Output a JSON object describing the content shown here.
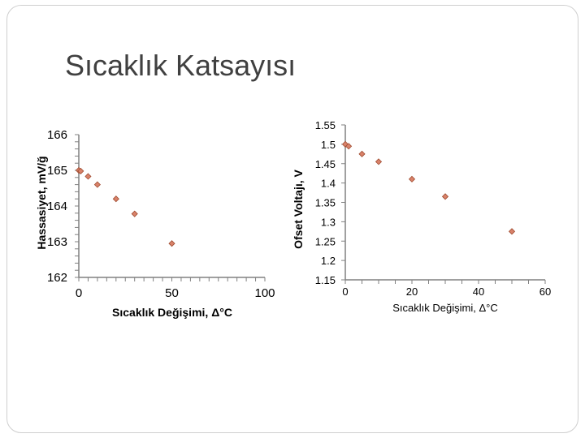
{
  "slide": {
    "title": "Sıcaklık Katsayısı"
  },
  "colors": {
    "marker_fill": "#d9826a",
    "marker_stroke": "#9e4a2e",
    "axis": "#808080",
    "text": "#000000",
    "title": "#404040"
  },
  "chart_data": [
    {
      "type": "scatter",
      "title": "",
      "xlabel": "Sıcaklık Değişimi, Δ°C",
      "ylabel": "Hassasiyet, mV/ğ",
      "xlim": [
        0,
        100
      ],
      "ylim": [
        162,
        166
      ],
      "x_ticks": [
        "0",
        "50",
        "100"
      ],
      "y_ticks": [
        "162",
        "163",
        "164",
        "165",
        "166"
      ],
      "grid": false,
      "legend": "none",
      "marker": "diamond",
      "series": [
        {
          "points": [
            {
              "x": 0,
              "y": 165.0
            },
            {
              "x": 1,
              "y": 164.98
            },
            {
              "x": 5,
              "y": 164.83
            },
            {
              "x": 10,
              "y": 164.6
            },
            {
              "x": 20,
              "y": 164.2
            },
            {
              "x": 30,
              "y": 163.78
            },
            {
              "x": 50,
              "y": 162.95
            }
          ]
        }
      ]
    },
    {
      "type": "scatter",
      "title": "",
      "xlabel": "Sıcaklık Değişimi, Δ°C",
      "ylabel": "Ofset Voltajı, V",
      "xlim": [
        0,
        60
      ],
      "ylim": [
        1.15,
        1.55
      ],
      "x_ticks": [
        "0",
        "20",
        "40",
        "60"
      ],
      "y_ticks": [
        "1.15",
        "1.2",
        "1.25",
        "1.3",
        "1.35",
        "1.4",
        "1.45",
        "1.5",
        "1.55"
      ],
      "grid": false,
      "legend": "none",
      "marker": "diamond",
      "series": [
        {
          "points": [
            {
              "x": 0,
              "y": 1.5
            },
            {
              "x": 1,
              "y": 1.495
            },
            {
              "x": 5,
              "y": 1.475
            },
            {
              "x": 10,
              "y": 1.455
            },
            {
              "x": 20,
              "y": 1.41
            },
            {
              "x": 30,
              "y": 1.365
            },
            {
              "x": 50,
              "y": 1.275
            }
          ]
        }
      ]
    }
  ]
}
